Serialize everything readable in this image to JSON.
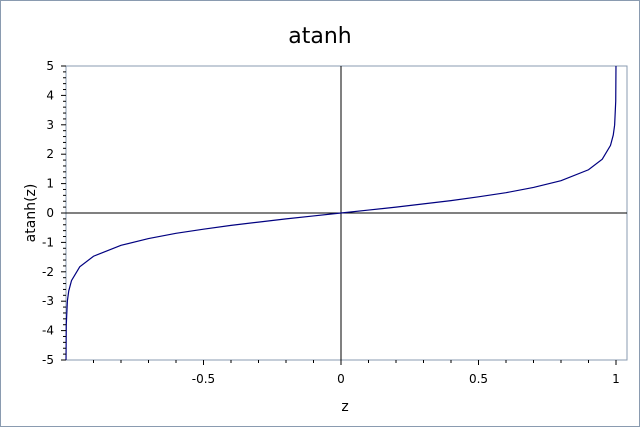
{
  "chart_data": {
    "type": "line",
    "title": "atanh",
    "xlabel": "z",
    "ylabel": "atanh(z)",
    "xlim": [
      -1,
      1
    ],
    "ylim": [
      -5,
      5
    ],
    "x_ticks": [
      -0.5,
      0,
      0.5,
      1
    ],
    "x_tick_labels": [
      "-0.5",
      "0",
      "0.5",
      "1"
    ],
    "y_ticks": [
      -5,
      -4,
      -3,
      -2,
      -1,
      0,
      1,
      2,
      3,
      4,
      5
    ],
    "y_tick_labels": [
      "-5",
      "-4",
      "-3",
      "-2",
      "-1",
      "0",
      "1",
      "2",
      "3",
      "4",
      "5"
    ],
    "grid": false,
    "legend": "none",
    "series": [
      {
        "color": "#000080",
        "x": [
          -0.99991,
          -0.9999,
          -0.999,
          -0.995,
          -0.99,
          -0.98,
          -0.95,
          -0.9,
          -0.8,
          -0.7,
          -0.6,
          -0.5,
          -0.4,
          -0.3,
          -0.2,
          -0.1,
          0,
          0.1,
          0.2,
          0.3,
          0.4,
          0.5,
          0.6,
          0.7,
          0.8,
          0.9,
          0.95,
          0.98,
          0.99,
          0.995,
          0.999,
          0.9999,
          0.99991
        ],
        "y": [
          -5.0,
          -4.95,
          -3.8,
          -2.99,
          -2.65,
          -2.3,
          -1.83,
          -1.47,
          -1.1,
          -0.87,
          -0.69,
          -0.55,
          -0.42,
          -0.31,
          -0.2,
          -0.1,
          0,
          0.1,
          0.2,
          0.31,
          0.42,
          0.55,
          0.69,
          0.87,
          1.1,
          1.47,
          1.83,
          2.3,
          2.65,
          2.99,
          3.8,
          4.95,
          5.0
        ]
      }
    ],
    "zero_lines": {
      "x": 0,
      "y": 0
    }
  }
}
